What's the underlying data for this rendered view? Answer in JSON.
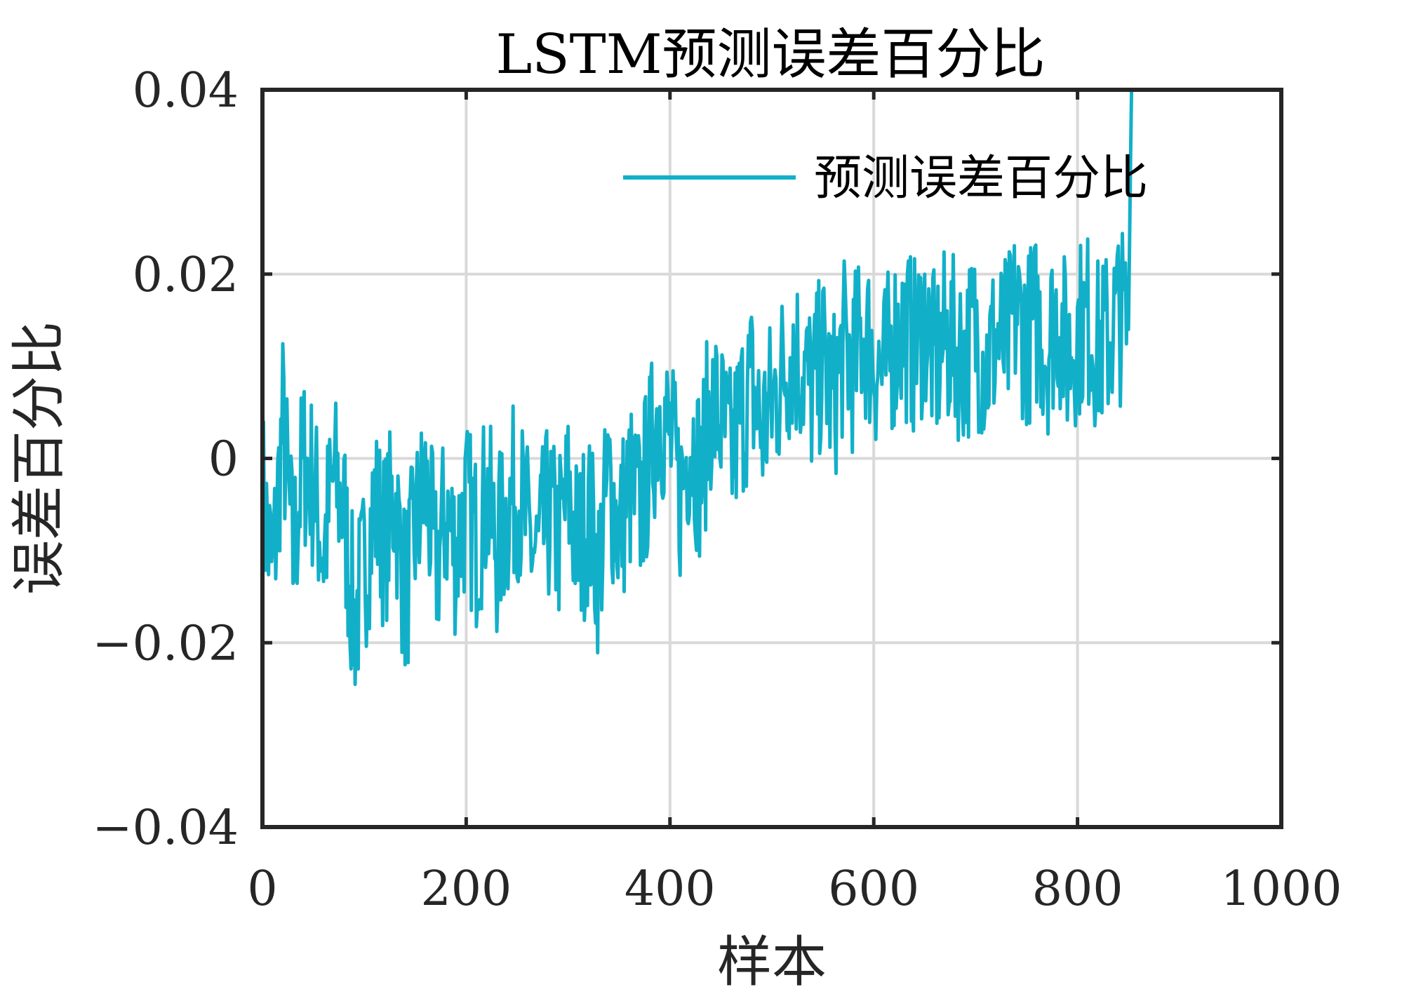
{
  "chart_data": {
    "type": "line",
    "title": "LSTM预测误差百分比",
    "xlabel": "样本",
    "ylabel": "误差百分比",
    "xlim": [
      0,
      1000
    ],
    "ylim": [
      -0.04,
      0.04
    ],
    "xticks": [
      0,
      200,
      400,
      600,
      800,
      1000
    ],
    "xtick_labels": [
      "0",
      "200",
      "400",
      "600",
      "800",
      "1000"
    ],
    "yticks": [
      -0.04,
      -0.02,
      0,
      0.02,
      0.04
    ],
    "ytick_labels": [
      "−0.04",
      "−0.02",
      "0",
      "0.02",
      "0.04"
    ],
    "grid": true,
    "legend_position": "top-right",
    "series": [
      {
        "name": "预测误差百分比",
        "color": "#12B0C8",
        "x": [
          0,
          10,
          20,
          30,
          40,
          50,
          60,
          70,
          80,
          90,
          100,
          110,
          120,
          130,
          140,
          150,
          160,
          170,
          180,
          190,
          200,
          210,
          220,
          230,
          240,
          250,
          260,
          270,
          280,
          290,
          300,
          310,
          320,
          330,
          340,
          350,
          360,
          370,
          380,
          390,
          400,
          410,
          420,
          430,
          440,
          450,
          460,
          470,
          480,
          490,
          500,
          510,
          520,
          530,
          540,
          550,
          560,
          570,
          580,
          590,
          600,
          610,
          620,
          630,
          640,
          650,
          660,
          670,
          680,
          690,
          700,
          710,
          720,
          730,
          740,
          750,
          760,
          770,
          780,
          790,
          800,
          810,
          820,
          830,
          840,
          850,
          853
        ],
        "y": [
          -0.0035,
          -0.013,
          0.004,
          -0.011,
          0.0,
          -0.003,
          -0.01,
          -0.002,
          -0.006,
          -0.018,
          -0.012,
          -0.005,
          -0.009,
          -0.004,
          -0.015,
          -0.008,
          -0.003,
          -0.012,
          -0.006,
          -0.01,
          -0.005,
          -0.009,
          -0.004,
          -0.01,
          -0.006,
          -0.003,
          -0.008,
          -0.011,
          -0.006,
          -0.009,
          -0.004,
          -0.01,
          -0.006,
          -0.012,
          -0.002,
          -0.008,
          -0.003,
          -0.006,
          0.0,
          0.006,
          0.002,
          -0.004,
          0.003,
          -0.002,
          0.006,
          0.004,
          0.0,
          0.005,
          0.008,
          0.003,
          0.006,
          0.009,
          0.012,
          0.01,
          0.007,
          0.011,
          0.006,
          0.012,
          0.01,
          0.014,
          0.011,
          0.009,
          0.013,
          0.014,
          0.012,
          0.015,
          0.01,
          0.013,
          0.012,
          0.011,
          0.014,
          0.01,
          0.013,
          0.012,
          0.016,
          0.013,
          0.015,
          0.012,
          0.016,
          0.011,
          0.014,
          0.015,
          0.012,
          0.013,
          0.016,
          0.014,
          0.041
        ],
        "y_noise_amplitude": 0.01
      }
    ]
  }
}
